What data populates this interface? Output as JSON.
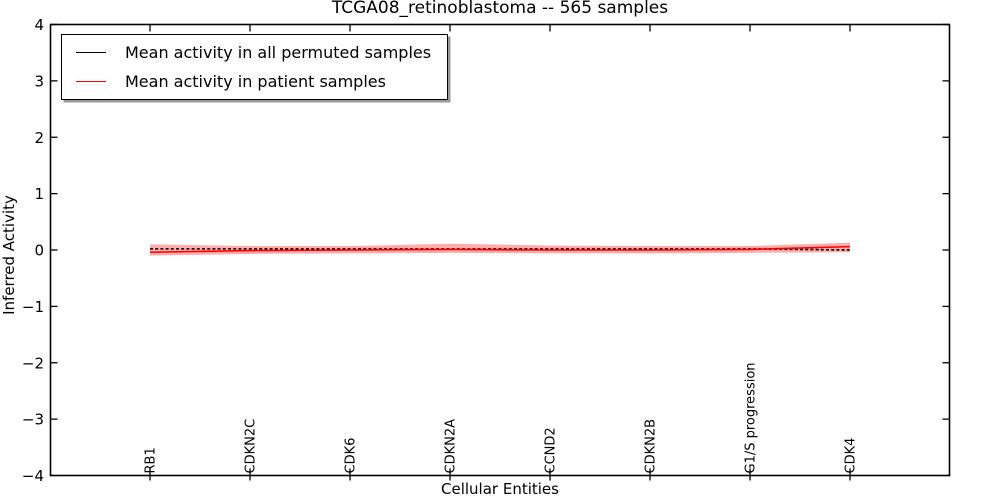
{
  "chart_data": {
    "type": "line",
    "title": "TCGA08_retinoblastoma -- 565 samples",
    "xlabel": "Cellular Entities",
    "ylabel": "Inferred Activity",
    "ylim": [
      -4,
      4
    ],
    "yticks": [
      4,
      3,
      2,
      1,
      0,
      -1,
      -2,
      -3,
      -4
    ],
    "categories": [
      "RB1",
      "CDKN2C",
      "CDK6",
      "CDKN2A",
      "CCND2",
      "CDKN2B",
      "G1/S progression",
      "CDK4"
    ],
    "series": [
      {
        "name": "Mean activity in all permuted samples",
        "color": "#000000",
        "line_style": "dashed",
        "values": [
          0.02,
          0.02,
          0.02,
          0.02,
          0.02,
          0.02,
          0.02,
          0.0
        ]
      },
      {
        "name": "Mean activity in patient samples",
        "color": "#ff0000",
        "line_style": "solid",
        "values": [
          -0.04,
          -0.01,
          0.0,
          0.01,
          0.0,
          0.0,
          0.01,
          0.06
        ]
      }
    ],
    "band": {
      "series": "Mean activity in patient samples",
      "color": "#ff0000",
      "opacity": 0.32,
      "upper": [
        0.1,
        0.07,
        0.07,
        0.11,
        0.08,
        0.07,
        0.07,
        0.13
      ],
      "lower": [
        -0.1,
        -0.07,
        -0.06,
        -0.05,
        -0.06,
        -0.06,
        -0.05,
        -0.04
      ]
    },
    "legend_position": "upper left",
    "grid": false,
    "frame_color": "#000000",
    "background": "#ffffff"
  }
}
